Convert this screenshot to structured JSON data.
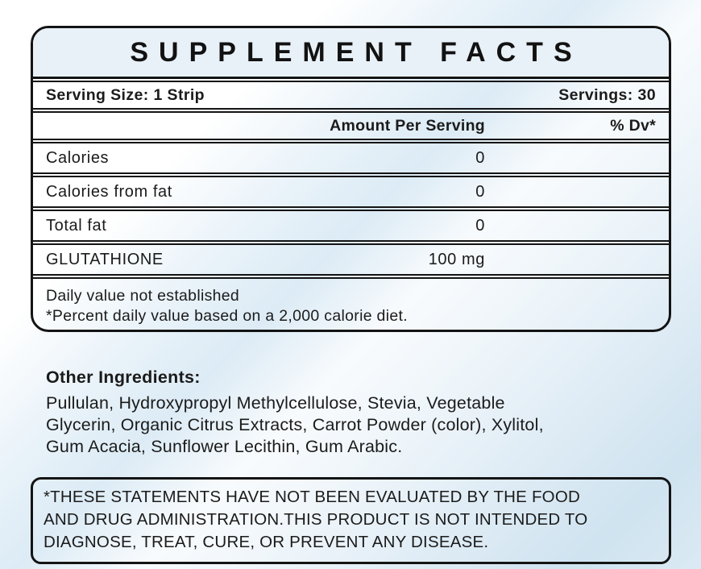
{
  "panel": {
    "title": "SUPPLEMENT FACTS",
    "serving_size": "Serving Size: 1 Strip",
    "servings": "Servings: 30",
    "col_amount": "Amount Per Serving",
    "col_dv": "% Dv*",
    "rows": [
      {
        "name": "Calories",
        "amount": "0",
        "dv": ""
      },
      {
        "name": "Calories from fat",
        "amount": "0",
        "dv": ""
      },
      {
        "name": "Total fat",
        "amount": "0",
        "dv": ""
      },
      {
        "name": "GLUTATHIONE",
        "amount": "100 mg",
        "dv": ""
      }
    ],
    "footnote_lines": [
      "Daily value not established",
      "*Percent daily value based on a 2,000 calorie diet."
    ]
  },
  "other_ingredients": {
    "heading": "Other Ingredients:",
    "lines": [
      "Pullulan, Hydroxypropyl Methylcellulose, Stevia, Vegetable",
      "Glycerin, Organic Citrus Extracts, Carrot Powder (color), Xylitol,",
      "Gum Acacia, Sunflower Lecithin, Gum Arabic."
    ]
  },
  "disclaimer_lines": [
    "*THESE STATEMENTS HAVE NOT BEEN EVALUATED BY THE FOOD",
    "AND DRUG ADMINISTRATION.THIS PRODUCT IS NOT INTENDED TO",
    "DIAGNOSE, TREAT, CURE, OR PREVENT ANY DISEASE."
  ],
  "colors": {
    "border_black": "#141414",
    "title_band_blue": "#e9f1f8",
    "streak_blue": "#d8e9f4",
    "text": "#1b1b1b"
  }
}
